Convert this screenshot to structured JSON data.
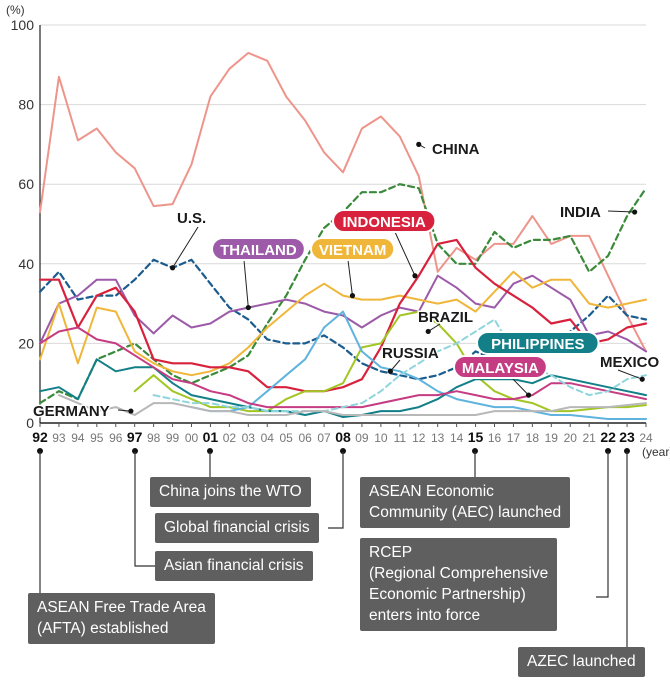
{
  "chart_data": {
    "type": "line",
    "unit_label": "(%)",
    "x_unit_label": "(year)",
    "ylim": [
      0,
      100
    ],
    "yticks": [
      0,
      20,
      40,
      60,
      80,
      100
    ],
    "grid": true,
    "x_tick_labels": [
      "92",
      "93",
      "94",
      "95",
      "96",
      "97",
      "98",
      "99",
      "00",
      "01",
      "02",
      "03",
      "04",
      "05",
      "06",
      "07",
      "08",
      "09",
      "10",
      "11",
      "12",
      "13",
      "14",
      "15",
      "16",
      "17",
      "18",
      "19",
      "20",
      "21",
      "22",
      "23",
      "24"
    ],
    "highlight_years": [
      "92",
      "97",
      "01",
      "08",
      "15",
      "22",
      "23"
    ],
    "series": [
      {
        "name": "CHINA",
        "color": "#ee958b",
        "style": "solid",
        "width": 2,
        "x": [
          1992,
          1993,
          1994,
          1995,
          1996,
          1997,
          1998,
          1999,
          2000,
          2001,
          2002,
          2003,
          2004,
          2005,
          2006,
          2007,
          2008,
          2009,
          2010,
          2011,
          2012,
          2013,
          2014,
          2015,
          2016,
          2017,
          2018,
          2019,
          2020,
          2021,
          2022,
          2023,
          2024
        ],
        "y": [
          53,
          87,
          71,
          74,
          68,
          64,
          54.5,
          55,
          65,
          82,
          89,
          93,
          91,
          82,
          76,
          68,
          63,
          74,
          77,
          72,
          62,
          38,
          44,
          41,
          45,
          45,
          52,
          45,
          47,
          47,
          37,
          27,
          18
        ]
      },
      {
        "name": "INDIA",
        "color": "#3a8a3a",
        "style": "dashed",
        "width": 2.2,
        "x": [
          1992,
          1993,
          1994,
          1995,
          1996,
          1997,
          1998,
          1999,
          2000,
          2001,
          2002,
          2003,
          2004,
          2005,
          2006,
          2007,
          2008,
          2009,
          2010,
          2011,
          2012,
          2013,
          2014,
          2015,
          2016,
          2017,
          2018,
          2019,
          2020,
          2021,
          2022,
          2023,
          2024
        ],
        "y": [
          5,
          8,
          6,
          16,
          18,
          20,
          16,
          12,
          10,
          12,
          14,
          17,
          25,
          32,
          41,
          49,
          53,
          58,
          58,
          60,
          59,
          45,
          40,
          40,
          48,
          44,
          46,
          46,
          47,
          38,
          42,
          52,
          59
        ]
      },
      {
        "name": "U.S.",
        "color": "#1b5c8e",
        "style": "dashed",
        "width": 2.2,
        "x": [
          1992,
          1993,
          1994,
          1995,
          1996,
          1997,
          1998,
          1999,
          2000,
          2001,
          2002,
          2003,
          2004,
          2005,
          2006,
          2007,
          2008,
          2009,
          2010,
          2011,
          2012,
          2013,
          2014,
          2015,
          2016,
          2017,
          2018,
          2019,
          2020,
          2021,
          2022,
          2023,
          2024
        ],
        "y": [
          33,
          38,
          31,
          32,
          32,
          36,
          41,
          39,
          41,
          35,
          29,
          26,
          21,
          20,
          20,
          22,
          19,
          15,
          13,
          12,
          11,
          12,
          14,
          18,
          16,
          17,
          18,
          20,
          23,
          27,
          32,
          27,
          26
        ]
      },
      {
        "name": "THAILAND",
        "color": "#9c5aa8",
        "style": "solid",
        "width": 2,
        "x": [
          1992,
          1993,
          1994,
          1995,
          1996,
          1997,
          1998,
          1999,
          2000,
          2001,
          2002,
          2003,
          2004,
          2005,
          2006,
          2007,
          2008,
          2009,
          2010,
          2011,
          2012,
          2013,
          2014,
          2015,
          2016,
          2017,
          2018,
          2019,
          2020,
          2021,
          2022,
          2023,
          2024
        ],
        "y": [
          20,
          30,
          32,
          36,
          36,
          27,
          22.5,
          27,
          24,
          25,
          28,
          29,
          30,
          31,
          30,
          28,
          27,
          24,
          27,
          29,
          28,
          37,
          34,
          30,
          29,
          35,
          37,
          34,
          31,
          22,
          23,
          21,
          18
        ]
      },
      {
        "name": "VIETNAM",
        "color": "#f0b63a",
        "style": "solid",
        "width": 2,
        "x": [
          1992,
          1993,
          1994,
          1995,
          1996,
          1997,
          1998,
          1999,
          2000,
          2001,
          2002,
          2003,
          2004,
          2005,
          2006,
          2007,
          2008,
          2009,
          2010,
          2011,
          2012,
          2013,
          2014,
          2015,
          2016,
          2017,
          2018,
          2019,
          2020,
          2021,
          2022,
          2023,
          2024
        ],
        "y": [
          16,
          30,
          15,
          29,
          28,
          18,
          15,
          13,
          12,
          13,
          15,
          19,
          24,
          28,
          32,
          35,
          32,
          31,
          31,
          32,
          31,
          30,
          31,
          28,
          33,
          38,
          34,
          36,
          36,
          30,
          29,
          30,
          31
        ]
      },
      {
        "name": "INDONESIA",
        "color": "#d8223d",
        "style": "solid",
        "width": 2.2,
        "x": [
          1992,
          1993,
          1994,
          1995,
          1996,
          1997,
          1998,
          1999,
          2000,
          2001,
          2002,
          2003,
          2004,
          2005,
          2006,
          2007,
          2008,
          2009,
          2010,
          2011,
          2012,
          2013,
          2014,
          2015,
          2016,
          2017,
          2018,
          2019,
          2020,
          2021,
          2022,
          2023,
          2024
        ],
        "y": [
          36,
          36,
          24,
          32,
          34,
          28,
          16,
          15,
          15,
          14,
          14,
          13,
          9,
          9,
          8,
          8,
          9,
          11,
          19,
          30,
          37,
          45,
          46,
          39,
          35,
          32,
          29,
          25,
          26,
          20,
          21,
          24,
          25
        ]
      },
      {
        "name": "BRAZIL",
        "color": "#a2c623",
        "style": "solid",
        "width": 2,
        "x": [
          1997,
          1998,
          1999,
          2000,
          2001,
          2002,
          2003,
          2004,
          2005,
          2006,
          2007,
          2008,
          2009,
          2010,
          2011,
          2012,
          2013,
          2014,
          2015,
          2016,
          2017,
          2018,
          2019,
          2020,
          2021,
          2022,
          2023,
          2024
        ],
        "y": [
          8,
          12,
          8,
          6,
          4,
          4,
          3,
          3,
          6,
          8,
          8,
          10,
          19,
          20,
          27,
          28,
          25,
          20,
          12,
          8,
          6,
          5,
          3,
          3,
          3.5,
          4,
          4,
          4.5
        ]
      },
      {
        "name": "RUSSIA",
        "color": "#5fb3dd",
        "style": "solid",
        "width": 2,
        "x": [
          2000,
          2001,
          2002,
          2003,
          2004,
          2005,
          2006,
          2007,
          2008,
          2009,
          2010,
          2011,
          2012,
          2013,
          2014,
          2015,
          2016,
          2017,
          2018,
          2019,
          2020,
          2021,
          2022,
          2023,
          2024
        ],
        "y": [
          4,
          3,
          3,
          4,
          8,
          12,
          16,
          24,
          28,
          18,
          14,
          13,
          11,
          8,
          6,
          5,
          4,
          4,
          3,
          2,
          2,
          1.5,
          1,
          1,
          1
        ]
      },
      {
        "name": "PHILIPPINES",
        "color": "#137f88",
        "style": "solid",
        "width": 2,
        "x": [
          1992,
          1993,
          1994,
          1995,
          1996,
          1997,
          1998,
          1999,
          2000,
          2001,
          2002,
          2003,
          2004,
          2005,
          2006,
          2007,
          2008,
          2009,
          2010,
          2011,
          2012,
          2013,
          2014,
          2015,
          2016,
          2017,
          2018,
          2019,
          2020,
          2021,
          2022,
          2023,
          2024
        ],
        "y": [
          8,
          9,
          6,
          16,
          13,
          14,
          14,
          10,
          7,
          6,
          5,
          4,
          3,
          3,
          2,
          3,
          1.5,
          2,
          3,
          3,
          4,
          6,
          9,
          11,
          11,
          11,
          10,
          12,
          11,
          10,
          9,
          8,
          7
        ]
      },
      {
        "name": "MALAYSIA",
        "color": "#c53c82",
        "style": "solid",
        "width": 2,
        "x": [
          1992,
          1993,
          1994,
          1995,
          1996,
          1997,
          1998,
          1999,
          2000,
          2001,
          2002,
          2003,
          2004,
          2005,
          2006,
          2007,
          2008,
          2009,
          2010,
          2011,
          2012,
          2013,
          2014,
          2015,
          2016,
          2017,
          2018,
          2019,
          2020,
          2021,
          2022,
          2023,
          2024
        ],
        "y": [
          20,
          23,
          24,
          21,
          20,
          17,
          14,
          11,
          10,
          8,
          7,
          5,
          4,
          4,
          4,
          4,
          4,
          4,
          5,
          6,
          7,
          7,
          8,
          7,
          6,
          6,
          7,
          10,
          10,
          9,
          8,
          7,
          6
        ]
      },
      {
        "name": "MEXICO",
        "color": "#8fd6dc",
        "style": "dashed",
        "width": 2,
        "x": [
          1998,
          1999,
          2000,
          2001,
          2002,
          2003,
          2004,
          2005,
          2006,
          2007,
          2008,
          2009,
          2010,
          2011,
          2012,
          2013,
          2014,
          2015,
          2016,
          2017,
          2018,
          2019,
          2020,
          2021,
          2022,
          2023,
          2024
        ],
        "y": [
          7,
          6,
          5,
          5,
          4,
          4,
          3,
          3,
          3,
          3,
          4,
          5,
          8,
          12,
          15,
          18,
          20,
          23,
          26,
          18,
          14,
          12,
          9,
          7,
          8,
          11,
          12
        ]
      },
      {
        "name": "GERMANY",
        "color": "#b8b8b8",
        "style": "solid",
        "width": 2,
        "x": [
          1993,
          1994,
          1995,
          1996,
          1997,
          1998,
          1999,
          2000,
          2001,
          2002,
          2003,
          2004,
          2005,
          2006,
          2007,
          2008,
          2009,
          2010,
          2011,
          2012,
          2013,
          2014,
          2015,
          2016,
          2017,
          2018,
          2019,
          2020,
          2021,
          2022,
          2023,
          2024
        ],
        "y": [
          7,
          5,
          3,
          4,
          2,
          5,
          5,
          4,
          3,
          3,
          2,
          2,
          2,
          3,
          3,
          2,
          2,
          2,
          2,
          2,
          2,
          2,
          2,
          3,
          3,
          3,
          3,
          4,
          4,
          4,
          4.5,
          5
        ]
      }
    ],
    "series_labels": [
      {
        "series": "CHINA",
        "text": "CHINA",
        "boxed": false,
        "dot_x": 2012,
        "dot_y": 70
      },
      {
        "series": "INDIA",
        "text": "INDIA",
        "boxed": false,
        "dot_x": 2023.4,
        "dot_y": 53
      },
      {
        "series": "U.S.",
        "text": "U.S.",
        "boxed": false,
        "dot_x": 1999,
        "dot_y": 39
      },
      {
        "series": "THAILAND",
        "text": "THAILAND",
        "boxed": true,
        "dot_x": 2003,
        "dot_y": 29
      },
      {
        "series": "VIETNAM",
        "text": "VIETNAM",
        "boxed": true,
        "dot_x": 2008.5,
        "dot_y": 32
      },
      {
        "series": "INDONESIA",
        "text": "INDONESIA",
        "boxed": true,
        "dot_x": 2011.8,
        "dot_y": 37
      },
      {
        "series": "BRAZIL",
        "text": "BRAZIL",
        "boxed": false,
        "dot_x": 2012.5,
        "dot_y": 23
      },
      {
        "series": "RUSSIA",
        "text": "RUSSIA",
        "boxed": false,
        "dot_x": 2010.5,
        "dot_y": 13
      },
      {
        "series": "PHILIPPINES",
        "text": "PHILIPPINES",
        "boxed": true,
        "dot_x": null,
        "dot_y": null
      },
      {
        "series": "MALAYSIA",
        "text": "MALAYSIA",
        "boxed": true,
        "dot_x": 2017.8,
        "dot_y": 7
      },
      {
        "series": "MEXICO",
        "text": "MEXICO",
        "boxed": false,
        "dot_x": 2023.8,
        "dot_y": 11
      },
      {
        "series": "GERMANY",
        "text": "GERMANY",
        "boxed": false,
        "dot_x": 1996.8,
        "dot_y": 3
      }
    ],
    "annotations": [
      {
        "year": "92",
        "text": "ASEAN Free Trade Area\n(AFTA) established"
      },
      {
        "year": "97",
        "text": "Asian financial crisis"
      },
      {
        "year": "01",
        "text": "China joins the WTO"
      },
      {
        "year": "08",
        "text": "Global financial crisis"
      },
      {
        "year": "15",
        "text": "ASEAN Economic\nCommunity (AEC) launched"
      },
      {
        "year": "22",
        "text": "RCEP\n(Regional Comprehensive\nEconomic Partnership)\nenters into force"
      },
      {
        "year": "23",
        "text": "AZEC launched"
      }
    ]
  }
}
